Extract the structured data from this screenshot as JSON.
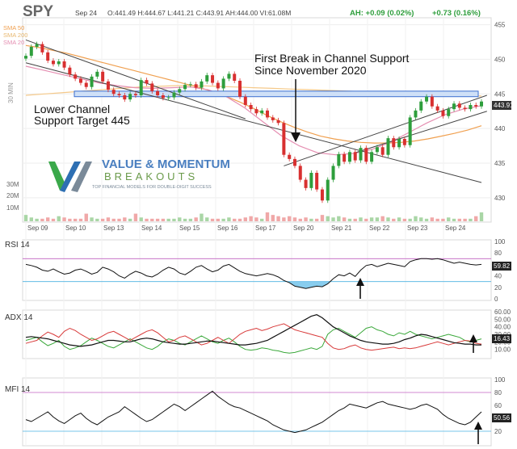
{
  "header": {
    "symbol": "SPY",
    "date": "Sep 24",
    "ohlc": "O:441.49  H:444.67  L:441.21  C:443.91  AH:444.00  VI:61.08M",
    "ah_change": "AH: +0.09 (0.02%)",
    "day_change": "+0.73 (0.16%)"
  },
  "ma_legend": [
    "SMA 50",
    "SMA 200",
    "SMA 20"
  ],
  "colors": {
    "up": "#2e9e3c",
    "down": "#d83030",
    "sma50": "#f0a050",
    "sma200": "#f5c98a",
    "sma20": "#e58fb2",
    "channel": "#444444",
    "support_band": "#3a6ed0",
    "rsi": "#111111",
    "adx": "#111111",
    "di_plus": "#3aa83a",
    "di_minus": "#d83a3a",
    "mfi": "#111111",
    "overbought": "#c060c0",
    "oversold": "#4ab0e0"
  },
  "timeframe_label": "30 MIN",
  "annotations": {
    "break_line1": "First Break in Channel Support",
    "break_line2": "Since November 2020",
    "lower_line1": "Lower Channel",
    "lower_line2": "Support Target 445"
  },
  "logo": {
    "line1": "VALUE & MOMENTUM",
    "line2": "BREAKOUTS",
    "tagline": "TOP FINANCIAL MODELS FOR DOUBLE-DIGIT SUCCESS"
  },
  "last_price_tag": "443.91",
  "volume_labels": [
    "30M",
    "20M",
    "10M"
  ],
  "panels": {
    "rsi": {
      "title": "RSI 14",
      "last": "59.82",
      "ticks": [
        "100",
        "80",
        "60",
        "40",
        "20",
        "0"
      ]
    },
    "adx": {
      "title": "ADX 14",
      "last": "16.43",
      "ticks": [
        "60.00",
        "50.00",
        "40.00",
        "30.00",
        "20.00",
        "10.00"
      ]
    },
    "mfi": {
      "title": "MFI 14",
      "last": "50.56",
      "ticks": [
        "100",
        "80",
        "60",
        "40",
        "20"
      ]
    }
  },
  "chart_data": {
    "type": "candlestick",
    "x_labels": [
      "Sep 09",
      "Sep 10",
      "Sep 13",
      "Sep 14",
      "Sep 15",
      "Sep 16",
      "Sep 17",
      "Sep 20",
      "Sep 21",
      "Sep 22",
      "Sep 23",
      "Sep 24"
    ],
    "price_ticks": [
      455,
      450,
      445,
      440,
      435,
      430
    ],
    "ylim": [
      428,
      456
    ],
    "close_path": [
      450.5,
      451.8,
      452.2,
      451.0,
      449.8,
      449.3,
      449.7,
      448.8,
      447.8,
      447.2,
      446.6,
      446.0,
      447.5,
      448.2,
      446.8,
      445.6,
      445.0,
      444.8,
      444.2,
      445.0,
      444.8,
      447.0,
      446.5,
      445.4,
      444.8,
      444.4,
      444.5,
      445.2,
      445.7,
      446.3,
      446.4,
      445.9,
      446.8,
      447.7,
      446.6,
      445.8,
      447.2,
      447.9,
      446.9,
      444.6,
      443.4,
      442.8,
      442.2,
      442.6,
      441.6,
      441.2,
      440.8,
      436.2,
      435.6,
      434.6,
      432.6,
      431.4,
      433.6,
      431.2,
      429.6,
      432.6,
      434.6,
      436.3,
      435.2,
      436.6,
      435.4,
      437.2,
      435.2,
      436.6,
      437.3,
      436.2,
      438.6,
      437.3,
      438.5,
      437.6,
      441.6,
      442.6,
      443.9,
      444.6,
      443.2,
      442.6,
      441.8,
      442.8,
      443.6,
      443.0,
      442.8,
      443.4,
      443.2,
      443.9
    ],
    "volume_ylim": [
      0,
      35
    ],
    "volume_values": [
      5,
      3,
      2,
      2,
      3,
      2,
      4,
      3,
      2,
      2,
      2,
      6,
      3,
      2,
      2,
      3,
      2,
      2,
      3,
      2,
      6,
      3,
      2,
      2,
      2,
      2,
      2,
      2,
      3,
      2,
      2,
      3,
      6,
      3,
      2,
      2,
      2,
      3,
      2,
      2,
      3,
      4,
      3,
      2,
      7,
      5,
      4,
      3,
      4,
      3,
      2,
      3,
      2,
      2,
      5,
      4,
      3,
      4,
      3,
      2,
      2,
      3,
      2,
      3,
      3,
      4,
      3,
      2,
      3,
      2,
      2,
      4,
      3,
      2,
      3,
      2,
      2,
      3,
      2,
      2,
      2,
      2,
      4,
      7
    ],
    "sma50": [
      452.0,
      451.7,
      451.3,
      450.9,
      450.4,
      449.9,
      449.4,
      448.9,
      448.4,
      447.9,
      447.4,
      446.9,
      446.4,
      445.9,
      445.3,
      444.6,
      443.8,
      442.9,
      441.9,
      441.0,
      440.2,
      439.5,
      438.9,
      438.5,
      438.2,
      438.0,
      437.9,
      437.9,
      438.0,
      438.2,
      438.5,
      438.9,
      439.3,
      439.8,
      440.4
    ],
    "sma200": [
      444.8,
      445.0,
      445.2,
      445.4,
      445.6,
      445.8,
      446.0,
      446.1,
      446.2,
      446.2,
      446.1,
      446.0,
      445.9,
      445.8,
      445.7,
      445.6,
      445.5,
      445.4,
      445.3,
      445.2,
      445.1,
      445.0,
      444.9,
      444.8,
      444.7
    ],
    "sma20": [
      449.0,
      448.4,
      447.8,
      447.2,
      446.6,
      446.2,
      445.9,
      445.8,
      445.9,
      446.0,
      445.6,
      444.6,
      443.0,
      441.0,
      439.0,
      437.5,
      436.5,
      436.2,
      436.4,
      437.0,
      438.0,
      439.4,
      440.8,
      442.0,
      442.8,
      443.3
    ],
    "upper_channel": [
      [
        0,
        452.8
      ],
      [
        40,
        441.4
      ]
    ],
    "lower_channel": [
      [
        0,
        449.5
      ],
      [
        83,
        432.2
      ]
    ],
    "support_band": [
      444.6,
      445.4
    ],
    "rising_channel": [
      [
        47,
        434.6
      ],
      [
        84,
        444.8
      ]
    ],
    "rising_lower": [
      [
        60,
        436.5
      ],
      [
        84,
        442.5
      ]
    ],
    "rsi": {
      "ylim": [
        0,
        100
      ],
      "overbought": 70,
      "oversold": 30,
      "values": [
        60,
        58,
        55,
        50,
        48,
        52,
        47,
        43,
        45,
        50,
        52,
        48,
        43,
        46,
        55,
        52,
        47,
        40,
        36,
        43,
        48,
        45,
        40,
        38,
        43,
        50,
        55,
        52,
        45,
        42,
        48,
        55,
        58,
        52,
        47,
        50,
        57,
        60,
        54,
        48,
        44,
        42,
        40,
        42,
        44,
        42,
        38,
        32,
        28,
        22,
        20,
        18,
        20,
        22,
        21,
        26,
        35,
        42,
        40,
        45,
        39,
        50,
        58,
        60,
        56,
        59,
        62,
        60,
        58,
        56,
        65,
        68,
        70,
        70,
        69,
        70,
        68,
        65,
        62,
        64,
        62,
        60,
        59,
        60
      ]
    },
    "adx": {
      "ylim": [
        0,
        60
      ],
      "adx": [
        26,
        27,
        26,
        25,
        24,
        22,
        20,
        18,
        16,
        15,
        14,
        15,
        16,
        18,
        20,
        22,
        22,
        21,
        20,
        20,
        22,
        24,
        25,
        24,
        22,
        20,
        19,
        18,
        17,
        17,
        18,
        19,
        20,
        21,
        21,
        20,
        19,
        18,
        17,
        16,
        16,
        17,
        18,
        20,
        22,
        26,
        30,
        34,
        38,
        42,
        46,
        50,
        54,
        56,
        52,
        46,
        40,
        36,
        32,
        28,
        25,
        22,
        20,
        19,
        18,
        17,
        17,
        18,
        20,
        23,
        25,
        28,
        30,
        29,
        27,
        25,
        23,
        21,
        19,
        18,
        17,
        17,
        16,
        16
      ],
      "di_plus": [
        22,
        24,
        26,
        20,
        15,
        18,
        22,
        14,
        10,
        12,
        15,
        20,
        25,
        22,
        18,
        14,
        12,
        16,
        20,
        24,
        20,
        16,
        12,
        10,
        14,
        20,
        24,
        22,
        18,
        16,
        20,
        24,
        28,
        24,
        20,
        18,
        22,
        25,
        20,
        14,
        10,
        9,
        10,
        12,
        11,
        9,
        8,
        6,
        5,
        6,
        8,
        10,
        12,
        10,
        14,
        30,
        36,
        38,
        34,
        30,
        26,
        32,
        38,
        40,
        36,
        34,
        30,
        28,
        32,
        30,
        34,
        30,
        28,
        26,
        24,
        26,
        28,
        30,
        28,
        26,
        22,
        20,
        22,
        24
      ],
      "di_minus": [
        18,
        20,
        22,
        28,
        33,
        30,
        26,
        34,
        38,
        35,
        30,
        26,
        22,
        24,
        28,
        32,
        34,
        30,
        26,
        22,
        26,
        30,
        34,
        36,
        32,
        26,
        20,
        22,
        26,
        28,
        24,
        20,
        16,
        18,
        22,
        26,
        22,
        18,
        24,
        30,
        34,
        36,
        38,
        35,
        37,
        40,
        42,
        44,
        40,
        36,
        34,
        32,
        30,
        28,
        26,
        18,
        12,
        10,
        11,
        14,
        16,
        12,
        10,
        9,
        10,
        11,
        12,
        13,
        11,
        12,
        11,
        12,
        14,
        16,
        18,
        20,
        18,
        16,
        18,
        20,
        22,
        21,
        18,
        17
      ]
    },
    "mfi": {
      "ylim": [
        0,
        100
      ],
      "overbought": 80,
      "oversold": 20,
      "values": [
        38,
        35,
        40,
        45,
        50,
        42,
        36,
        32,
        38,
        44,
        48,
        40,
        34,
        30,
        36,
        42,
        46,
        50,
        58,
        52,
        46,
        40,
        35,
        38,
        44,
        50,
        56,
        62,
        58,
        52,
        58,
        64,
        70,
        76,
        82,
        74,
        68,
        62,
        58,
        56,
        52,
        48,
        44,
        40,
        36,
        30,
        26,
        22,
        20,
        18,
        20,
        22,
        26,
        30,
        34,
        40,
        46,
        52,
        56,
        62,
        60,
        58,
        56,
        60,
        64,
        66,
        62,
        60,
        58,
        56,
        54,
        56,
        60,
        62,
        58,
        54,
        46,
        40,
        36,
        32,
        30,
        34,
        42,
        50
      ]
    }
  }
}
